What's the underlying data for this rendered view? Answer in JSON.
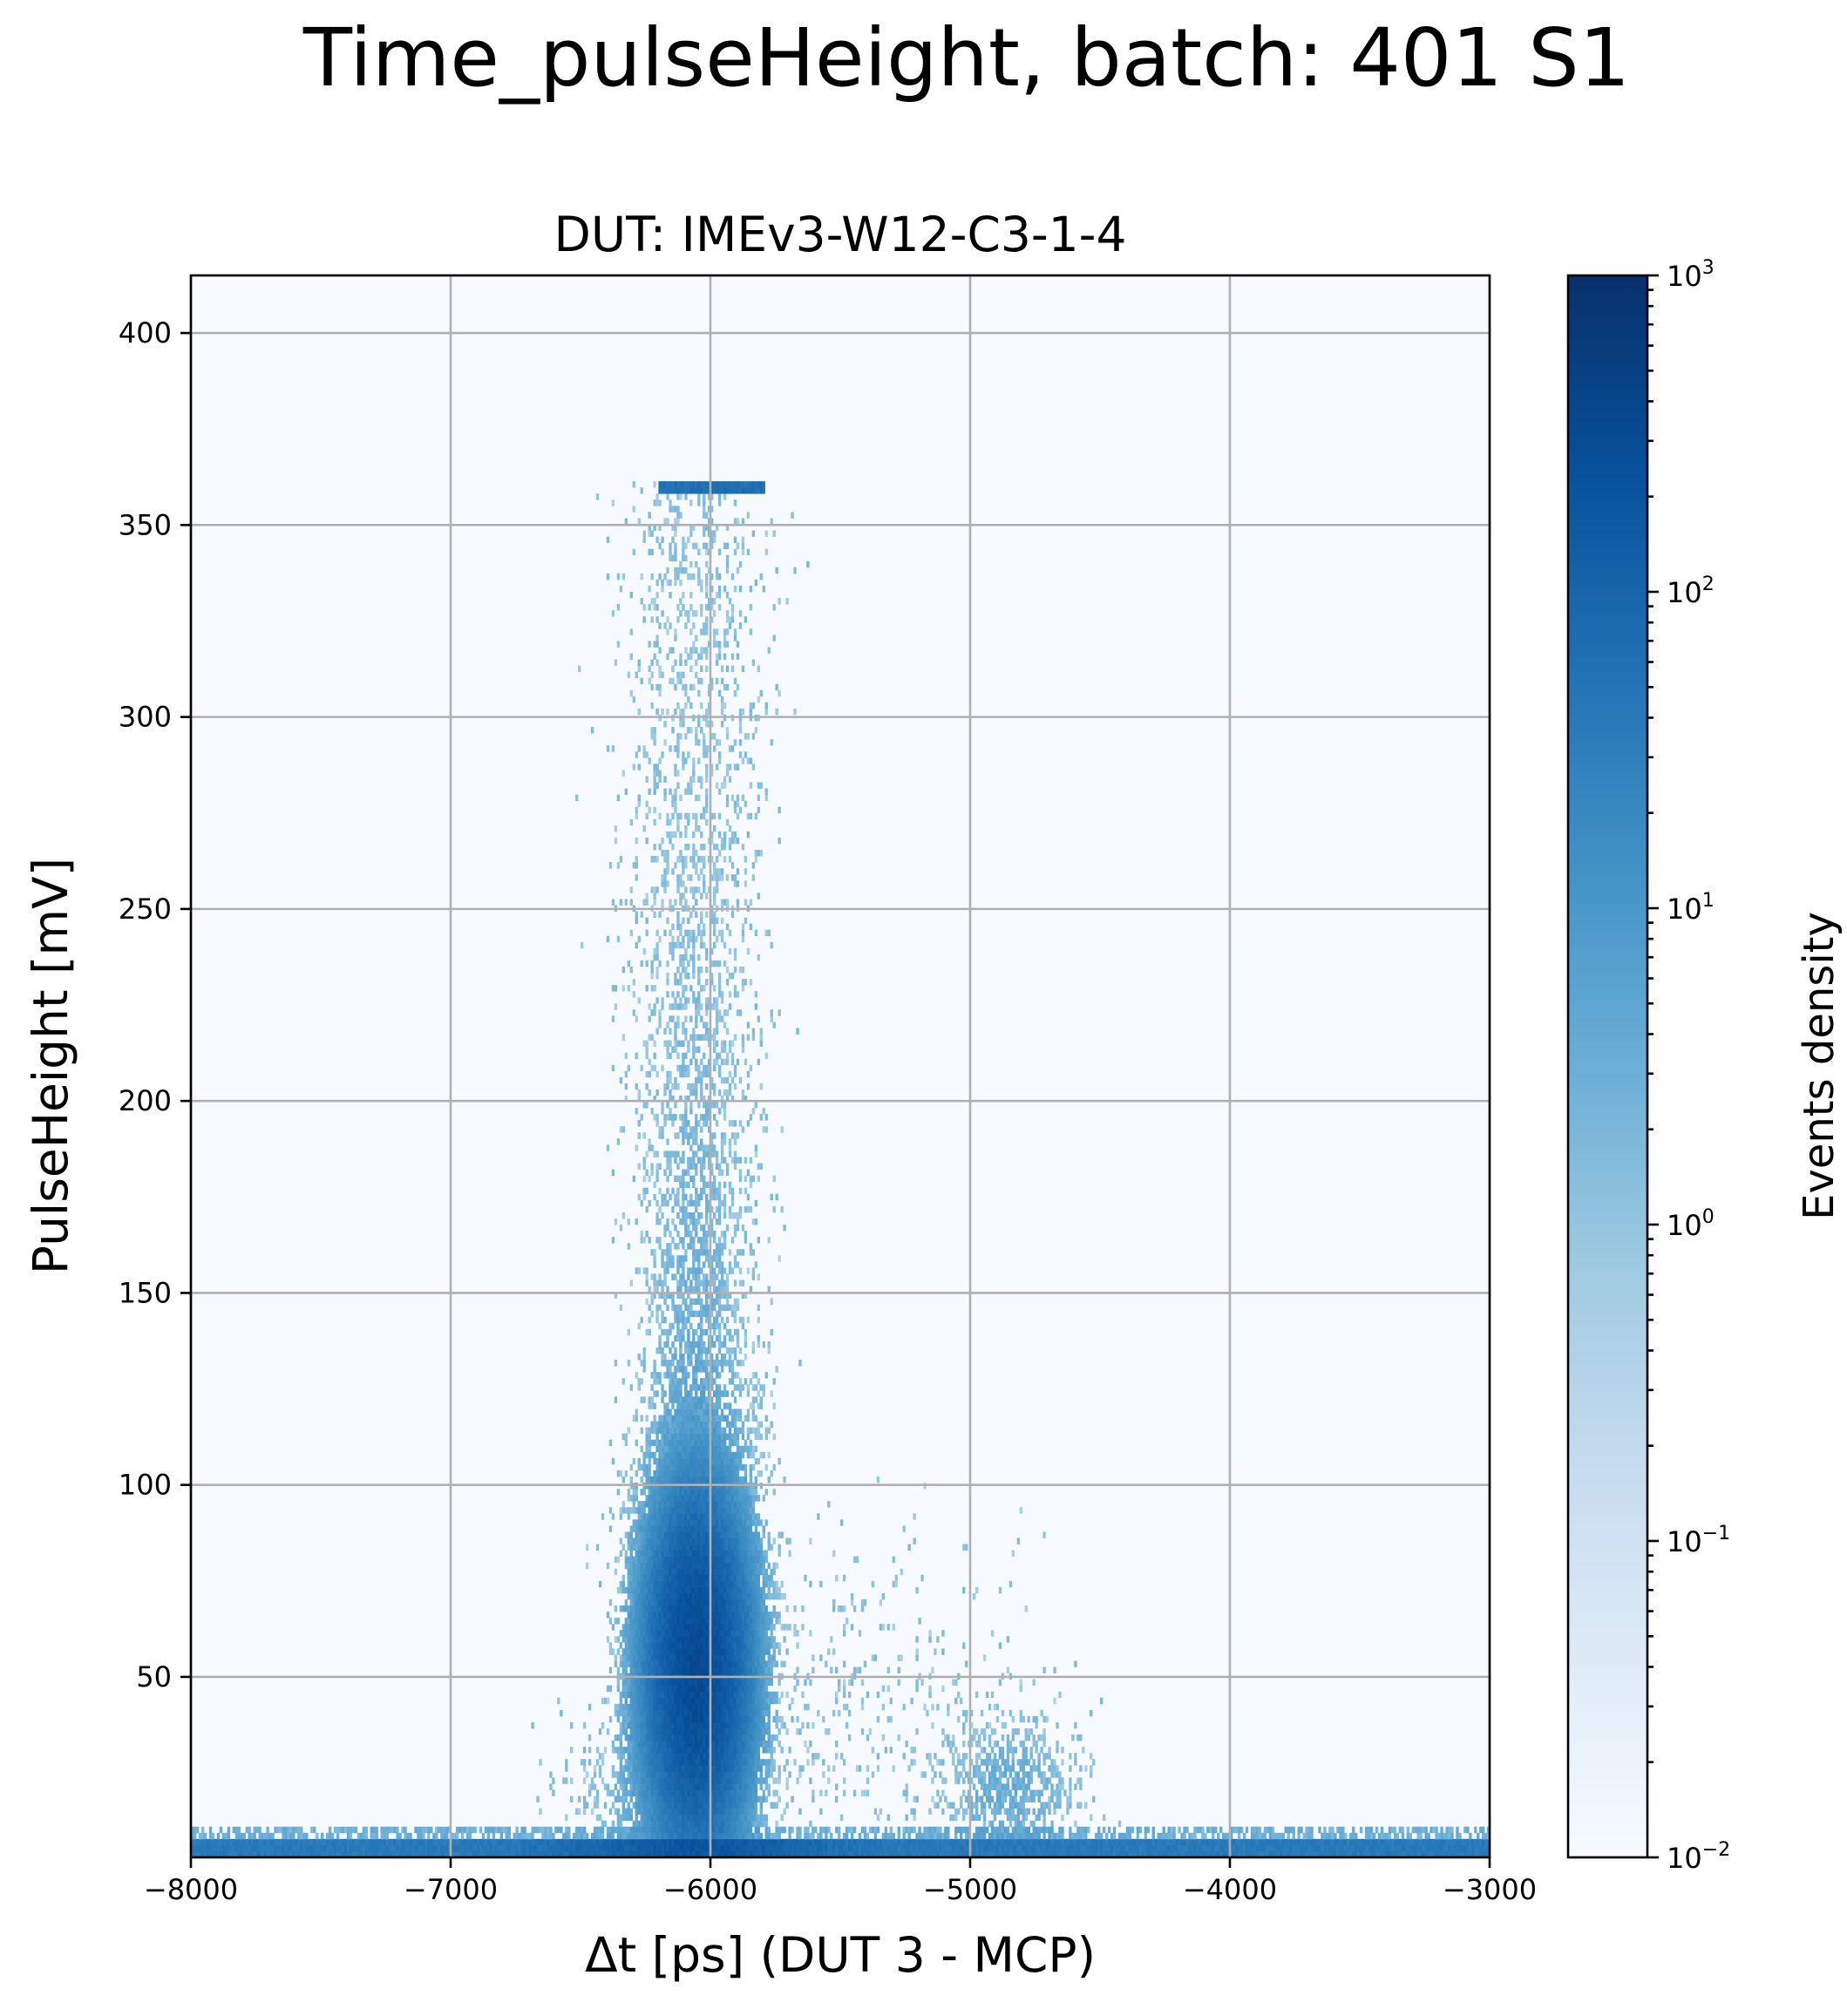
{
  "suptitle": "Time_pulseHeight, batch: 401 S1",
  "chart_data": {
    "type": "heatmap",
    "title": "DUT: IMEv3-W12-C3-1-4",
    "xlabel": "Δt [ps] (DUT 3 - MCP)",
    "ylabel": "PulseHeight [mV]",
    "xlim": [
      -8000,
      -3000
    ],
    "ylim": [
      3,
      415
    ],
    "x_ticks": [
      -8000,
      -7000,
      -6000,
      -5000,
      -4000,
      -3000
    ],
    "x_tick_labels": [
      "−8000",
      "−7000",
      "−6000",
      "−5000",
      "−4000",
      "−3000"
    ],
    "y_ticks": [
      50,
      100,
      150,
      200,
      250,
      300,
      350,
      400
    ],
    "y_tick_labels": [
      "50",
      "100",
      "150",
      "200",
      "250",
      "300",
      "350",
      "400"
    ],
    "grid": true,
    "colormap": "Blues",
    "colorbar": {
      "label": "Events density",
      "scale": "log",
      "range": [
        0.01,
        1000
      ],
      "tick_base": "10",
      "tick_exponents": [
        "−2",
        "−1",
        "0",
        "1",
        "2",
        "3"
      ],
      "colors": [
        "#f7fbff",
        "#deebf7",
        "#c6dbef",
        "#9ecae1",
        "#6baed6",
        "#4292c6",
        "#2171b5",
        "#08519c",
        "#08306b"
      ]
    },
    "features": [
      {
        "description": "main cluster",
        "x_center": -6050,
        "y_center": 50,
        "peak_density": 300
      },
      {
        "description": "vertical tail",
        "x_center": -6050,
        "y_range": [
          80,
          360
        ]
      },
      {
        "description": "saturation band",
        "x_range": [
          -6200,
          -5800
        ],
        "y": 360
      },
      {
        "description": "secondary cluster",
        "x_center": -4850,
        "y_center": 20
      },
      {
        "description": "noise baseline",
        "y_range": [
          3,
          8
        ]
      }
    ]
  }
}
